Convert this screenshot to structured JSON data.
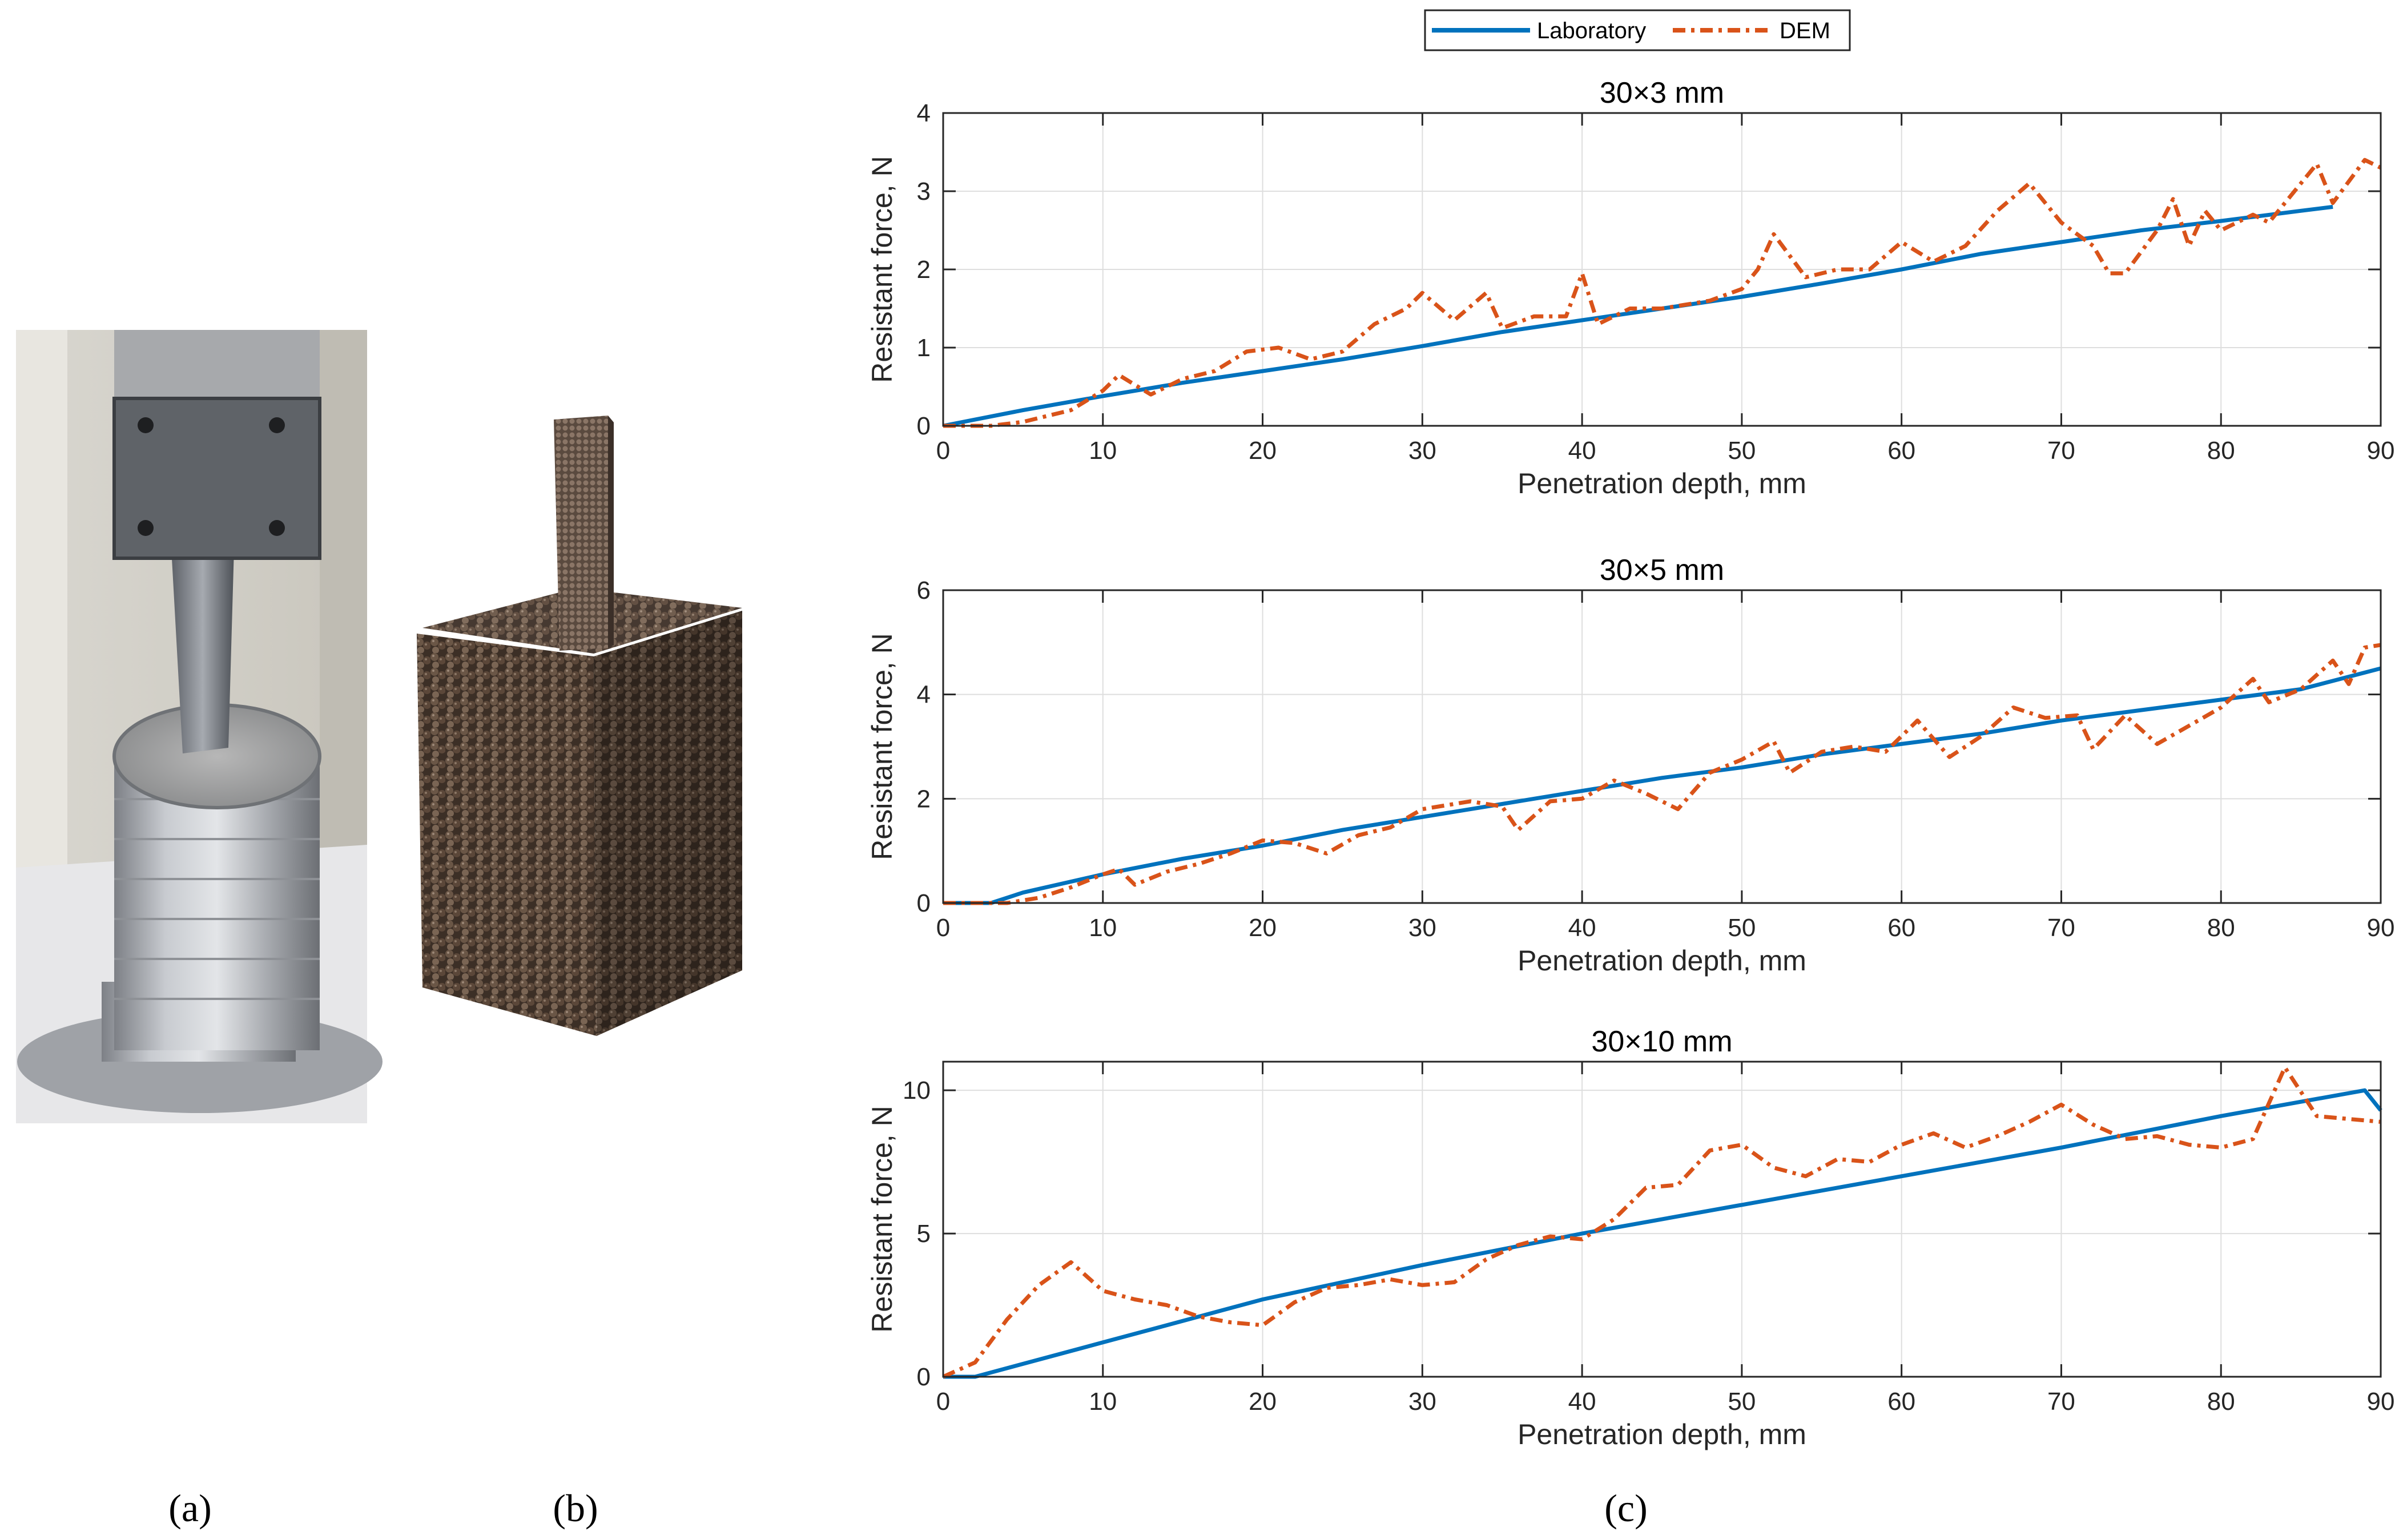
{
  "panel_labels": {
    "a": "(a)",
    "b": "(b)",
    "c": "(c)"
  },
  "photo_a": {
    "description_icon": "penetration-test-photo"
  },
  "render_b": {
    "description_icon": "dem-particle-block"
  },
  "legend": {
    "lab_label": "Laboratory",
    "dem_label": "DEM",
    "lab_color": "#0072BD",
    "dem_color": "#D95319"
  },
  "chart_data": [
    {
      "type": "line",
      "title": "30×3 mm",
      "xlabel": "Penetration depth, mm",
      "ylabel": "Resistant force, N",
      "xlim": [
        0,
        90
      ],
      "ylim": [
        0,
        4
      ],
      "xticks": [
        0,
        10,
        20,
        30,
        40,
        50,
        60,
        70,
        80,
        90
      ],
      "yticks": [
        0,
        1,
        2,
        3,
        4
      ],
      "grid": true,
      "series": [
        {
          "name": "Laboratory",
          "x": [
            0,
            5,
            10,
            15,
            20,
            25,
            30,
            35,
            40,
            45,
            50,
            55,
            60,
            65,
            70,
            75,
            80,
            85,
            87
          ],
          "y": [
            0,
            0.2,
            0.38,
            0.55,
            0.7,
            0.85,
            1.02,
            1.2,
            1.35,
            1.5,
            1.65,
            1.82,
            2.0,
            2.2,
            2.35,
            2.5,
            2.62,
            2.75,
            2.8
          ]
        },
        {
          "name": "DEM",
          "x": [
            0,
            3,
            5,
            8,
            10,
            11,
            13,
            15,
            17,
            19,
            21,
            23,
            25,
            27,
            29,
            30,
            32,
            34,
            35,
            37,
            39,
            40,
            41,
            43,
            45,
            48,
            50,
            51,
            52,
            54,
            56,
            58,
            60,
            62,
            64,
            66,
            68,
            70,
            72,
            73,
            74,
            76,
            77,
            78,
            79,
            80,
            82,
            83,
            85,
            86,
            87,
            89,
            90
          ],
          "y": [
            0,
            0,
            0.05,
            0.2,
            0.45,
            0.65,
            0.4,
            0.6,
            0.7,
            0.95,
            1.0,
            0.85,
            0.95,
            1.3,
            1.5,
            1.7,
            1.35,
            1.7,
            1.25,
            1.4,
            1.4,
            1.95,
            1.3,
            1.5,
            1.5,
            1.6,
            1.75,
            2.0,
            2.45,
            1.9,
            2.0,
            2.0,
            2.35,
            2.1,
            2.3,
            2.75,
            3.1,
            2.6,
            2.3,
            1.95,
            1.95,
            2.5,
            2.9,
            2.3,
            2.75,
            2.5,
            2.7,
            2.6,
            3.1,
            3.35,
            2.85,
            3.4,
            3.3
          ]
        }
      ]
    },
    {
      "type": "line",
      "title": "30×5 mm",
      "xlabel": "Penetration depth, mm",
      "ylabel": "Resistant force, N",
      "xlim": [
        0,
        90
      ],
      "ylim": [
        0,
        6
      ],
      "xticks": [
        0,
        10,
        20,
        30,
        40,
        50,
        60,
        70,
        80,
        90
      ],
      "yticks": [
        0,
        2,
        4,
        6
      ],
      "grid": true,
      "series": [
        {
          "name": "Laboratory",
          "x": [
            0,
            3,
            5,
            10,
            15,
            20,
            25,
            30,
            35,
            40,
            45,
            50,
            55,
            60,
            65,
            70,
            75,
            80,
            85,
            90
          ],
          "y": [
            0,
            0,
            0.2,
            0.55,
            0.85,
            1.1,
            1.4,
            1.65,
            1.9,
            2.15,
            2.4,
            2.6,
            2.85,
            3.05,
            3.25,
            3.5,
            3.7,
            3.9,
            4.1,
            4.5
          ]
        },
        {
          "name": "DEM",
          "x": [
            0,
            4,
            6,
            8,
            10,
            11,
            12,
            14,
            16,
            18,
            20,
            22,
            24,
            26,
            28,
            30,
            33,
            35,
            36,
            38,
            40,
            42,
            44,
            46,
            48,
            50,
            52,
            53,
            55,
            57,
            59,
            61,
            63,
            65,
            67,
            69,
            71,
            72,
            74,
            76,
            78,
            80,
            82,
            83,
            85,
            87,
            88,
            89,
            90
          ],
          "y": [
            0,
            0,
            0.1,
            0.3,
            0.55,
            0.65,
            0.35,
            0.6,
            0.75,
            0.95,
            1.2,
            1.15,
            0.95,
            1.3,
            1.45,
            1.8,
            1.95,
            1.85,
            1.4,
            1.95,
            2.0,
            2.35,
            2.1,
            1.8,
            2.5,
            2.75,
            3.1,
            2.5,
            2.9,
            3.0,
            2.9,
            3.5,
            2.8,
            3.2,
            3.75,
            3.55,
            3.6,
            2.95,
            3.6,
            3.05,
            3.4,
            3.75,
            4.3,
            3.85,
            4.1,
            4.65,
            4.2,
            4.9,
            4.95
          ]
        }
      ]
    },
    {
      "type": "line",
      "title": "30×10 mm",
      "xlabel": "Penetration depth, mm",
      "ylabel": "Resistant force, N",
      "xlim": [
        0,
        90
      ],
      "ylim": [
        0,
        11
      ],
      "xticks": [
        0,
        10,
        20,
        30,
        40,
        50,
        60,
        70,
        80,
        90
      ],
      "yticks": [
        0,
        5,
        10
      ],
      "grid": true,
      "series": [
        {
          "name": "Laboratory",
          "x": [
            0,
            2,
            10,
            20,
            30,
            40,
            50,
            60,
            70,
            80,
            89,
            90
          ],
          "y": [
            0,
            0,
            1.2,
            2.7,
            3.9,
            5.0,
            6.0,
            7.0,
            8.0,
            9.1,
            10.0,
            9.3
          ]
        },
        {
          "name": "DEM",
          "x": [
            0,
            2,
            4,
            6,
            8,
            10,
            12,
            14,
            16,
            18,
            20,
            22,
            24,
            26,
            28,
            30,
            32,
            34,
            36,
            38,
            40,
            42,
            44,
            46,
            48,
            50,
            52,
            54,
            56,
            58,
            60,
            62,
            64,
            66,
            68,
            70,
            72,
            74,
            76,
            78,
            80,
            82,
            84,
            86,
            88,
            90
          ],
          "y": [
            0,
            0.5,
            2.0,
            3.2,
            4.0,
            3.0,
            2.7,
            2.5,
            2.1,
            1.9,
            1.8,
            2.6,
            3.1,
            3.2,
            3.4,
            3.2,
            3.3,
            4.1,
            4.6,
            4.9,
            4.8,
            5.5,
            6.6,
            6.7,
            7.9,
            8.1,
            7.3,
            7.0,
            7.6,
            7.5,
            8.1,
            8.5,
            8.0,
            8.4,
            8.9,
            9.5,
            8.8,
            8.3,
            8.4,
            8.1,
            8.0,
            8.3,
            10.8,
            9.1,
            9.0,
            8.9
          ]
        }
      ]
    }
  ]
}
